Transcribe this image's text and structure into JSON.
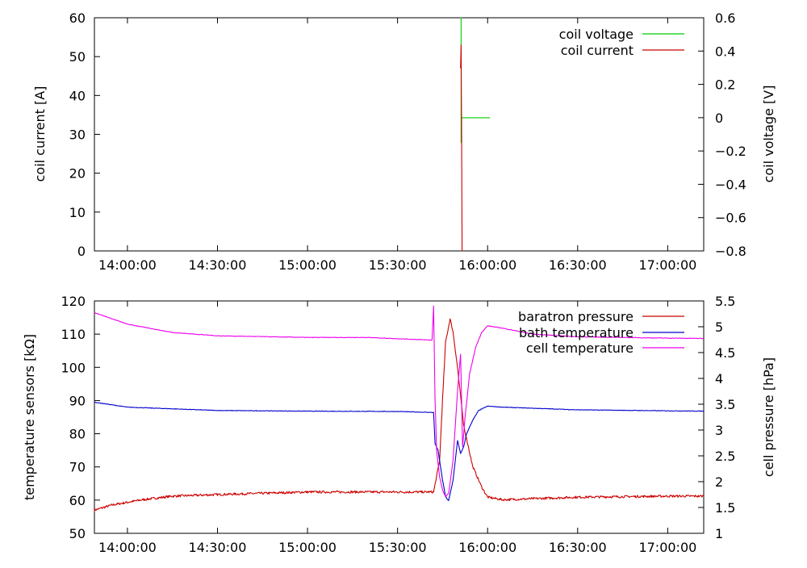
{
  "chart_data": [
    {
      "type": "line",
      "xlabel": "",
      "ylabel": "coil current [A]",
      "y2label": "coil voltage [V]",
      "xlim": [
        "13:49:00",
        "17:12:00"
      ],
      "ylim": [
        0,
        60
      ],
      "y2lim": [
        -0.8,
        0.6
      ],
      "x_ticks": [
        "14:00:00",
        "14:30:00",
        "15:00:00",
        "15:30:00",
        "16:00:00",
        "16:30:00",
        "17:00:00"
      ],
      "y_ticks": [
        "0",
        "10",
        "20",
        "30",
        "40",
        "50",
        "60"
      ],
      "y2_ticks": [
        "−0.8",
        "−0.6",
        "−0.4",
        "−0.2",
        "0",
        "0.2",
        "0.4",
        "0.6"
      ],
      "legend_position": "top-right",
      "grid": false,
      "series": [
        {
          "name": "coil voltage",
          "axis": "y2",
          "color": "#00cc00",
          "x": [
            "15:51:00",
            "15:51:10",
            "15:51:10",
            "15:51:20",
            "15:51:20",
            "15:51:30",
            "15:51:40",
            "16:00:50"
          ],
          "y": [
            0.6,
            0.6,
            -0.15,
            -0.15,
            0.0,
            0.0,
            0.0,
            0.0
          ]
        },
        {
          "name": "coil current",
          "axis": "y",
          "color": "#cc0000",
          "x": [
            "15:51:00",
            "15:51:10",
            "15:51:20",
            "15:51:30",
            "15:51:40"
          ],
          "y": [
            47,
            53,
            30,
            0,
            0
          ]
        }
      ]
    },
    {
      "type": "line",
      "xlabel": "",
      "ylabel": "temperature sensors [kΩ]",
      "y2label": "cell pressure [hPa]",
      "xlim": [
        "13:49:00",
        "17:12:00"
      ],
      "ylim": [
        50,
        120
      ],
      "y2lim": [
        1,
        5.5
      ],
      "x_ticks": [
        "14:00:00",
        "14:30:00",
        "15:00:00",
        "15:30:00",
        "16:00:00",
        "16:30:00",
        "17:00:00"
      ],
      "y_ticks": [
        "50",
        "60",
        "70",
        "80",
        "90",
        "100",
        "110",
        "120"
      ],
      "y2_ticks": [
        "1",
        "1.5",
        "2",
        "2.5",
        "3",
        "3.5",
        "4",
        "4.5",
        "5",
        "5.5"
      ],
      "legend_position": "top-right",
      "grid": false,
      "series": [
        {
          "name": "baratron pressure",
          "axis": "y2",
          "color": "#cc0000",
          "x": [
            "13:49:00",
            "13:55:00",
            "14:05:00",
            "14:15:00",
            "14:30:00",
            "15:00:00",
            "15:30:00",
            "15:42:00",
            "15:44:00",
            "15:45:00",
            "15:46:00",
            "15:47:30",
            "15:48:30",
            "15:50:00",
            "15:52:00",
            "15:55:00",
            "15:58:00",
            "16:00:00",
            "16:05:00",
            "16:30:00",
            "17:00:00",
            "17:12:00"
          ],
          "y": [
            1.45,
            1.55,
            1.65,
            1.72,
            1.75,
            1.8,
            1.8,
            1.8,
            2.4,
            3.6,
            4.7,
            5.15,
            4.9,
            4.2,
            3.1,
            2.3,
            1.9,
            1.7,
            1.65,
            1.7,
            1.72,
            1.72
          ]
        },
        {
          "name": "bath temperature",
          "axis": "y",
          "color": "#0000cc",
          "x": [
            "13:49:00",
            "14:00:00",
            "14:30:00",
            "15:00:00",
            "15:30:00",
            "15:42:00",
            "15:42:30",
            "15:43:30",
            "15:45:00",
            "15:46:00",
            "15:47:00",
            "15:48:30",
            "15:50:00",
            "15:51:00",
            "15:52:00",
            "15:53:00",
            "15:55:00",
            "15:57:00",
            "16:00:00",
            "16:05:00",
            "16:30:00",
            "17:00:00",
            "17:12:00"
          ],
          "y": [
            89.5,
            88,
            87,
            86.8,
            86.7,
            86.4,
            77,
            75,
            66,
            61,
            59.8,
            66,
            78,
            74,
            76,
            80,
            84,
            87,
            88.3,
            88,
            87.2,
            86.9,
            86.8
          ]
        },
        {
          "name": "cell temperature",
          "axis": "y",
          "color": "#ee00ee",
          "x": [
            "13:49:00",
            "14:00:00",
            "14:15:00",
            "14:30:00",
            "15:00:00",
            "15:20:00",
            "15:41:30",
            "15:42:00",
            "15:42:30",
            "15:43:00",
            "15:44:00",
            "15:45:00",
            "15:46:00",
            "15:47:00",
            "15:48:30",
            "15:50:00",
            "15:51:00",
            "15:51:40",
            "15:52:30",
            "15:54:00",
            "15:56:00",
            "15:58:00",
            "16:00:00",
            "16:05:00",
            "16:15:00",
            "16:30:00",
            "17:00:00",
            "17:12:00"
          ],
          "y": [
            116.5,
            113,
            110.5,
            109.5,
            109,
            109,
            108.2,
            118.5,
            90,
            75,
            67,
            63,
            61,
            62,
            72,
            93,
            104,
            76,
            85,
            98,
            106,
            110.5,
            112.5,
            111.8,
            110,
            109.2,
            108.8,
            108.7
          ]
        }
      ]
    }
  ]
}
